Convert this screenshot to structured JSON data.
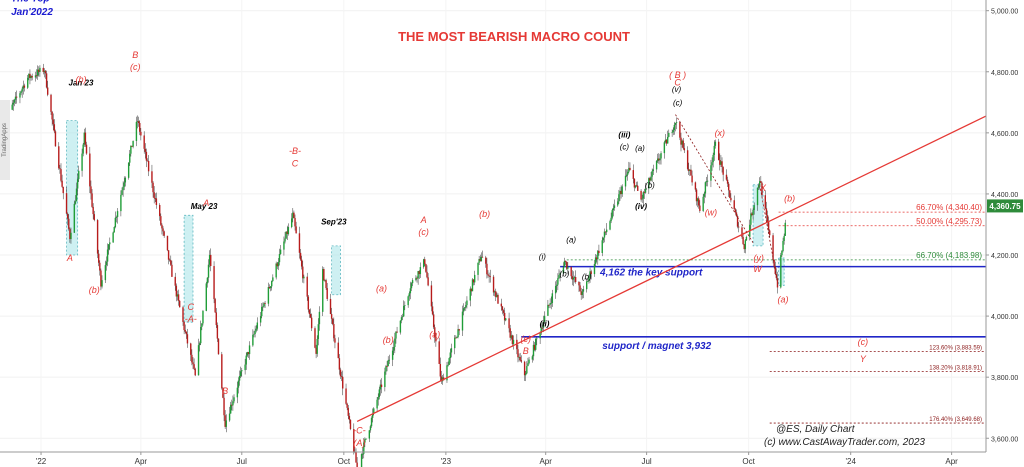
{
  "chart_data": {
    "type": "candlestick",
    "title": "THE MOST BEARISH MACRO COUNT",
    "y_ticks": [
      "5,000.00",
      "4,800.00",
      "4,600.00",
      "4,400.00",
      "4,200.00",
      "4,000.00",
      "3,800.00",
      "3,600.00"
    ],
    "y_tick_values": [
      5000,
      4800,
      4600,
      4400,
      4200,
      4000,
      3800,
      3600
    ],
    "ylim": [
      3555,
      5035
    ],
    "x_ticks": [
      "'22",
      "Apr",
      "Jul",
      "Oct",
      "'23",
      "Apr",
      "Jul",
      "Oct",
      "'24",
      "Apr"
    ],
    "x_tick_dates": [
      "2022-01-01",
      "2022-04-01",
      "2022-07-01",
      "2022-10-01",
      "2023-01-01",
      "2023-04-01",
      "2023-07-01",
      "2023-10-01",
      "2024-01-01",
      "2024-04-01"
    ],
    "xlim": [
      "2021-11-25",
      "2024-05-02"
    ],
    "price_path": [
      {
        "date": "2021-11-29",
        "value": 4640
      },
      {
        "date": "2021-12-20",
        "value": 4780
      },
      {
        "date": "2022-01-04",
        "value": 4808
      },
      {
        "date": "2022-01-27",
        "value": 4260
      },
      {
        "date": "2022-02-09",
        "value": 4590
      },
      {
        "date": "2022-02-24",
        "value": 4110
      },
      {
        "date": "2022-03-29",
        "value": 4640
      },
      {
        "date": "2022-05-20",
        "value": 3800
      },
      {
        "date": "2022-06-02",
        "value": 4200
      },
      {
        "date": "2022-06-16",
        "value": 3650
      },
      {
        "date": "2022-08-16",
        "value": 4330
      },
      {
        "date": "2022-09-06",
        "value": 3880
      },
      {
        "date": "2022-09-12",
        "value": 4150
      },
      {
        "date": "2022-10-13",
        "value": 3500
      },
      {
        "date": "2022-11-30",
        "value": 4100
      },
      {
        "date": "2022-12-13",
        "value": 4180
      },
      {
        "date": "2022-12-28",
        "value": 3780
      },
      {
        "date": "2023-02-02",
        "value": 4200
      },
      {
        "date": "2023-03-13",
        "value": 3810
      },
      {
        "date": "2023-04-18",
        "value": 4180
      },
      {
        "date": "2023-05-04",
        "value": 4070
      },
      {
        "date": "2023-06-15",
        "value": 4480
      },
      {
        "date": "2023-06-26",
        "value": 4380
      },
      {
        "date": "2023-07-27",
        "value": 4640
      },
      {
        "date": "2023-08-18",
        "value": 4350
      },
      {
        "date": "2023-09-01",
        "value": 4560
      },
      {
        "date": "2023-09-27",
        "value": 4230
      },
      {
        "date": "2023-10-11",
        "value": 4450
      },
      {
        "date": "2023-10-27",
        "value": 4103
      },
      {
        "date": "2023-11-06",
        "value": 4380
      }
    ],
    "price_badge": "4,360.75",
    "price_badge_value": 4360.75,
    "horizontal_levels": [
      {
        "label": "4,162 the key support",
        "value": 4162,
        "color": "#2026c8"
      },
      {
        "label": "support / magnet 3,932",
        "value": 3932,
        "color": "#2026c8"
      }
    ],
    "fib_levels": [
      {
        "label": "66.70% (4,340.40)",
        "value": 4340.4,
        "color": "#e53935"
      },
      {
        "label": "50.00% (4,295.73)",
        "value": 4295.73,
        "color": "#e53935"
      },
      {
        "label": "66.70% (4,183.98)",
        "value": 4183.98,
        "color": "#2e8b3a"
      },
      {
        "label": "123.60% (3,883.59)",
        "value": 3883.59,
        "color": "#8b1a1a"
      },
      {
        "label": "138.20% (3,818.91)",
        "value": 3818.91,
        "color": "#8b1a1a"
      },
      {
        "label": "176.40% (3,649.68)",
        "value": 3649.68,
        "color": "#8b1a1a"
      }
    ],
    "trendline": [
      {
        "date": "2022-10-13",
        "value": 3655
      },
      {
        "date": "2024-05-02",
        "value": 4655
      }
    ],
    "annotations": [
      {
        "text": "The Top",
        "date": "2021-12-05",
        "value": 5040,
        "color": "#1a1ad0"
      },
      {
        "text": "Jan'2022",
        "date": "2021-12-05",
        "value": 4995,
        "color": "#1a1ad0"
      },
      {
        "text": "Jan 23",
        "date": "2022-02-06",
        "value": 4765,
        "color": "#000000"
      },
      {
        "text": "(b)",
        "date": "2022-02-06",
        "value": 4775,
        "color": "#e53935"
      },
      {
        "text": "A",
        "date": "2022-01-27",
        "value": 4190,
        "color": "#e53935"
      },
      {
        "text": "(b)",
        "date": "2022-02-18",
        "value": 4085,
        "color": "#e53935"
      },
      {
        "text": "B",
        "date": "2022-03-27",
        "value": 4855,
        "color": "#e53935"
      },
      {
        "text": "(c)",
        "date": "2022-03-27",
        "value": 4815,
        "color": "#e53935"
      },
      {
        "text": "May 23",
        "date": "2022-05-28",
        "value": 4360,
        "color": "#000000"
      },
      {
        "text": "A",
        "date": "2022-05-30",
        "value": 4370,
        "color": "#e53935"
      },
      {
        "text": "C",
        "date": "2022-05-16",
        "value": 4030,
        "color": "#e53935"
      },
      {
        "text": "-A-",
        "date": "2022-05-16",
        "value": 3990,
        "color": "#e53935"
      },
      {
        "text": "B",
        "date": "2022-06-16",
        "value": 3755,
        "color": "#e53935"
      },
      {
        "text": "-B-",
        "date": "2022-08-18",
        "value": 4540,
        "color": "#e53935"
      },
      {
        "text": "C",
        "date": "2022-08-18",
        "value": 4500,
        "color": "#e53935"
      },
      {
        "text": "Sep'23",
        "date": "2022-09-22",
        "value": 4310,
        "color": "#000000"
      },
      {
        "text": "(a)",
        "date": "2022-11-04",
        "value": 4090,
        "color": "#e53935"
      },
      {
        "text": "(b)",
        "date": "2022-11-10",
        "value": 3922,
        "color": "#e53935"
      },
      {
        "text": "A",
        "date": "2022-12-12",
        "value": 4315,
        "color": "#e53935"
      },
      {
        "text": "(c)",
        "date": "2022-12-12",
        "value": 4275,
        "color": "#e53935"
      },
      {
        "text": "(a)",
        "date": "2022-12-22",
        "value": 3940,
        "color": "#e53935"
      },
      {
        "text": "(b)",
        "date": "2023-02-05",
        "value": 4335,
        "color": "#e53935"
      },
      {
        "text": "-C-",
        "date": "2022-10-15",
        "value": 3625,
        "color": "#e53935"
      },
      {
        "text": "(A)",
        "date": "2022-10-15",
        "value": 3585,
        "color": "#e53935"
      },
      {
        "text": "(i)",
        "date": "2023-03-29",
        "value": 4195,
        "color": "#000000"
      },
      {
        "text": "(ii)",
        "date": "2023-03-31",
        "value": 3975,
        "color": "#000000"
      },
      {
        "text": "(c)",
        "date": "2023-03-14",
        "value": 3925,
        "color": "#e53935"
      },
      {
        "text": "B",
        "date": "2023-03-14",
        "value": 3885,
        "color": "#e53935"
      },
      {
        "text": "(a)",
        "date": "2023-04-24",
        "value": 4250,
        "color": "#000000"
      },
      {
        "text": "(b)",
        "date": "2023-05-08",
        "value": 4130,
        "color": "#000000"
      },
      {
        "text": "(iii)",
        "date": "2023-06-11",
        "value": 4595,
        "color": "#000000"
      },
      {
        "text": "(c)",
        "date": "2023-06-11",
        "value": 4555,
        "color": "#000000"
      },
      {
        "text": "(a)",
        "date": "2023-06-25",
        "value": 4550,
        "color": "#000000"
      },
      {
        "text": "(iv)",
        "date": "2023-06-26",
        "value": 4360,
        "color": "#000000"
      },
      {
        "text": "(b)",
        "date": "2023-07-04",
        "value": 4430,
        "color": "#000000"
      },
      {
        "text": "( B )",
        "date": "2023-07-29",
        "value": 4790,
        "color": "#e53935"
      },
      {
        "text": "C",
        "date": "2023-07-29",
        "value": 4765,
        "color": "#e53935"
      },
      {
        "text": "(v)",
        "date": "2023-07-28",
        "value": 4743,
        "color": "#000000"
      },
      {
        "text": "(c)",
        "date": "2023-07-29",
        "value": 4700,
        "color": "#000000"
      },
      {
        "text": "(x)",
        "date": "2023-09-05",
        "value": 4600,
        "color": "#e53935"
      },
      {
        "text": "(w)",
        "date": "2023-08-28",
        "value": 4340,
        "color": "#e53935"
      },
      {
        "text": "X",
        "date": "2023-10-14",
        "value": 4420,
        "color": "#e53935"
      },
      {
        "text": "(b)",
        "date": "2023-11-07",
        "value": 4385,
        "color": "#e53935"
      },
      {
        "text": "(y)",
        "date": "2023-10-10",
        "value": 4190,
        "color": "#e53935"
      },
      {
        "text": "W",
        "date": "2023-10-09",
        "value": 4155,
        "color": "#e53935"
      },
      {
        "text": "(a)",
        "date": "2023-11-01",
        "value": 4055,
        "color": "#e53935"
      },
      {
        "text": "(b)",
        "date": "2023-04-18",
        "value": 4140,
        "color": "#000000"
      },
      {
        "text": "(c)",
        "date": "2024-01-12",
        "value": 3915,
        "color": "#e53935"
      },
      {
        "text": "Y",
        "date": "2024-01-12",
        "value": 3860,
        "color": "#e53935"
      }
    ],
    "highlight_boxes": [
      {
        "from": "2022-01-24",
        "to": "2022-02-03",
        "low": 4200,
        "high": 4640
      },
      {
        "from": "2022-05-10",
        "to": "2022-05-18",
        "low": 3980,
        "high": 4330
      },
      {
        "from": "2022-09-20",
        "to": "2022-09-28",
        "low": 4070,
        "high": 4230
      },
      {
        "from": "2023-10-05",
        "to": "2023-10-14",
        "low": 4230,
        "high": 4430
      },
      {
        "from": "2023-10-28",
        "to": "2023-11-02",
        "low": 4100,
        "high": 4190
      }
    ],
    "footer_lines": [
      "@ES,  Daily Chart",
      "(c) www.CastAwayTrader.com, 2023"
    ],
    "watermark": "TradingApps"
  }
}
